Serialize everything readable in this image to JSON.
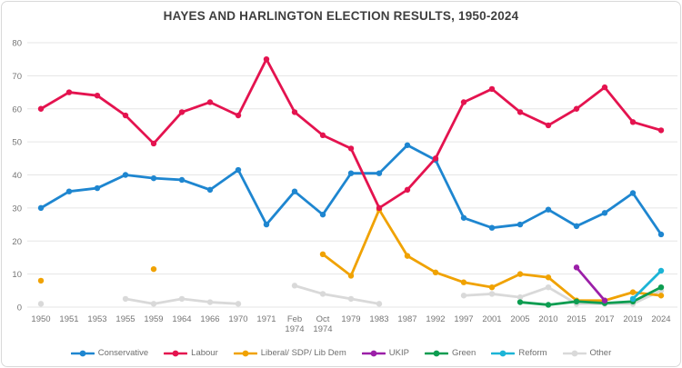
{
  "chart_data": {
    "type": "line",
    "title": "HAYES AND HARLINGTON ELECTION RESULTS, 1950-2024",
    "xlabel": "",
    "ylabel": "",
    "ylim": [
      0,
      80
    ],
    "y_ticks": [
      0,
      10,
      20,
      30,
      40,
      50,
      60,
      70,
      80
    ],
    "grid": true,
    "legend_position": "bottom",
    "categories": [
      "1950",
      "1951",
      "1953",
      "1955",
      "1959",
      "1964",
      "1966",
      "1970",
      "1971",
      "Feb 1974",
      "Oct 1974",
      "1979",
      "1983",
      "1987",
      "1992",
      "1997",
      "2001",
      "2005",
      "2010",
      "2015",
      "2017",
      "2019",
      "2024"
    ],
    "series": [
      {
        "name": "Conservative",
        "color": "#1e86d0",
        "values": [
          30,
          35,
          36,
          40,
          39,
          38.5,
          35.5,
          41.5,
          25,
          35,
          28,
          40.5,
          40.5,
          49,
          44.5,
          27,
          24,
          25,
          29.5,
          24.5,
          28.5,
          34.5,
          22
        ]
      },
      {
        "name": "Labour",
        "color": "#e4134f",
        "values": [
          60,
          65,
          64,
          58,
          49.5,
          59,
          62,
          58,
          75,
          59,
          52,
          48,
          30,
          35.5,
          45,
          62,
          66,
          59,
          55,
          60,
          66.5,
          56,
          53.5
        ]
      },
      {
        "name": "Liberal/ SDP/ Lib Dem",
        "color": "#f0a202",
        "values": [
          8,
          null,
          null,
          null,
          11.5,
          null,
          null,
          null,
          null,
          null,
          16,
          9.5,
          29.5,
          15.5,
          10.5,
          7.5,
          6,
          10,
          9,
          2,
          2,
          4.5,
          3.5
        ]
      },
      {
        "name": "UKIP",
        "color": "#9b1fa8",
        "values": [
          null,
          null,
          null,
          null,
          null,
          null,
          null,
          null,
          null,
          null,
          null,
          null,
          null,
          null,
          null,
          null,
          null,
          null,
          null,
          12,
          2,
          null,
          null
        ]
      },
      {
        "name": "Green",
        "color": "#0d9d51",
        "values": [
          null,
          null,
          null,
          null,
          null,
          null,
          null,
          null,
          null,
          null,
          null,
          null,
          null,
          null,
          null,
          null,
          null,
          1.5,
          0.7,
          1.7,
          1.2,
          1.7,
          6
        ]
      },
      {
        "name": "Reform",
        "color": "#1cb4d6",
        "values": [
          null,
          null,
          null,
          null,
          null,
          null,
          null,
          null,
          null,
          null,
          null,
          null,
          null,
          null,
          null,
          null,
          null,
          null,
          null,
          null,
          null,
          2.5,
          11
        ]
      },
      {
        "name": "Other",
        "color": "#d9d9d9",
        "values": [
          1,
          null,
          null,
          2.5,
          1,
          2.5,
          1.5,
          1,
          null,
          6.5,
          4,
          2.5,
          1,
          null,
          null,
          3.5,
          4,
          3,
          6,
          1,
          1,
          1,
          5
        ]
      }
    ]
  }
}
